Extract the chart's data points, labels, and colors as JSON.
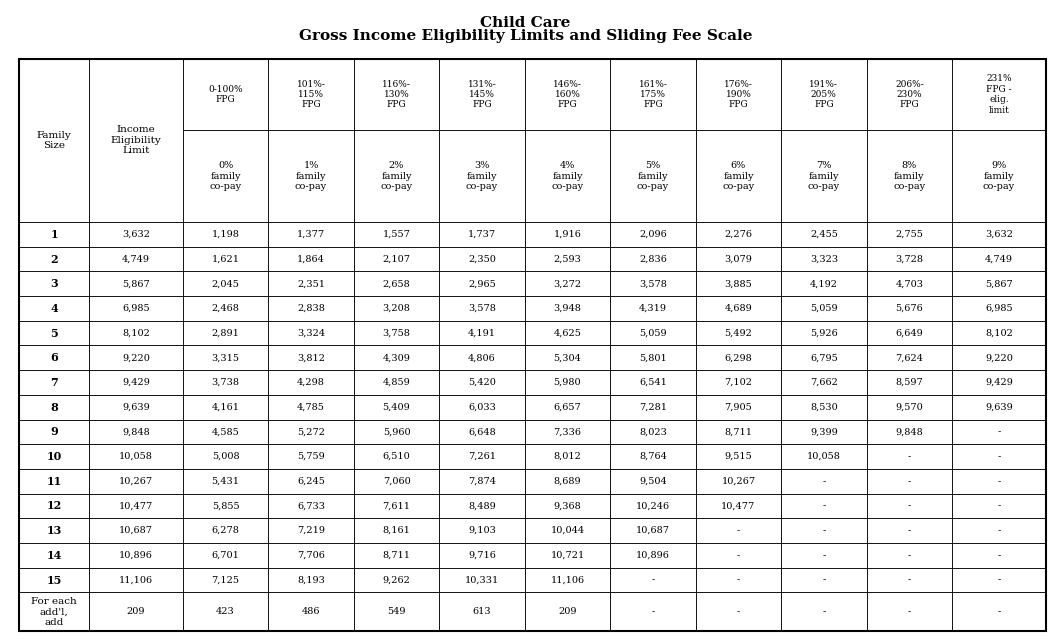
{
  "title_line1": "Child Care",
  "title_line2": "Gross Income Eligibility Limits and Sliding Fee Scale",
  "col_headers_top": [
    "0-100%\nFPG",
    "101%-\n115%\nFPG",
    "116%-\n130%\nFPG",
    "131%-\n145%\nFPG",
    "146%-\n160%\nFPG",
    "161%-\n175%\nFPG",
    "176%-\n190%\nFPG",
    "191%-\n205%\nFPG",
    "206%-\n230%\nFPG",
    "231%\nFPG -\nelig.\nlimit"
  ],
  "col_headers_bottom": [
    "Family\nSize",
    "Income\nEligibility\nLimit",
    "0%\nfamily\nco-pay",
    "1%\nfamily\nco-pay",
    "2%\nfamily\nco-pay",
    "3%\nfamily\nco-pay",
    "4%\nfamily\nco-pay",
    "5%\nfamily\nco-pay",
    "6%\nfamily\nco-pay",
    "7%\nfamily\nco-pay",
    "8%\nfamily\nco-pay",
    "9%\nfamily\nco-pay"
  ],
  "row_labels": [
    "1",
    "2",
    "3",
    "4",
    "5",
    "6",
    "7",
    "8",
    "9",
    "10",
    "11",
    "12",
    "13",
    "14",
    "15",
    "For each\nadd'l,\nadd"
  ],
  "data": [
    [
      "3,632",
      "1,198",
      "1,377",
      "1,557",
      "1,737",
      "1,916",
      "2,096",
      "2,276",
      "2,455",
      "2,755",
      "3,632"
    ],
    [
      "4,749",
      "1,621",
      "1,864",
      "2,107",
      "2,350",
      "2,593",
      "2,836",
      "3,079",
      "3,323",
      "3,728",
      "4,749"
    ],
    [
      "5,867",
      "2,045",
      "2,351",
      "2,658",
      "2,965",
      "3,272",
      "3,578",
      "3,885",
      "4,192",
      "4,703",
      "5,867"
    ],
    [
      "6,985",
      "2,468",
      "2,838",
      "3,208",
      "3,578",
      "3,948",
      "4,319",
      "4,689",
      "5,059",
      "5,676",
      "6,985"
    ],
    [
      "8,102",
      "2,891",
      "3,324",
      "3,758",
      "4,191",
      "4,625",
      "5,059",
      "5,492",
      "5,926",
      "6,649",
      "8,102"
    ],
    [
      "9,220",
      "3,315",
      "3,812",
      "4,309",
      "4,806",
      "5,304",
      "5,801",
      "6,298",
      "6,795",
      "7,624",
      "9,220"
    ],
    [
      "9,429",
      "3,738",
      "4,298",
      "4,859",
      "5,420",
      "5,980",
      "6,541",
      "7,102",
      "7,662",
      "8,597",
      "9,429"
    ],
    [
      "9,639",
      "4,161",
      "4,785",
      "5,409",
      "6,033",
      "6,657",
      "7,281",
      "7,905",
      "8,530",
      "9,570",
      "9,639"
    ],
    [
      "9,848",
      "4,585",
      "5,272",
      "5,960",
      "6,648",
      "7,336",
      "8,023",
      "8,711",
      "9,399",
      "9,848",
      "-"
    ],
    [
      "10,058",
      "5,008",
      "5,759",
      "6,510",
      "7,261",
      "8,012",
      "8,764",
      "9,515",
      "10,058",
      "-",
      "-"
    ],
    [
      "10,267",
      "5,431",
      "6,245",
      "7,060",
      "7,874",
      "8,689",
      "9,504",
      "10,267",
      "-",
      "-",
      "-"
    ],
    [
      "10,477",
      "5,855",
      "6,733",
      "7,611",
      "8,489",
      "9,368",
      "10,246",
      "10,477",
      "-",
      "-",
      "-"
    ],
    [
      "10,687",
      "6,278",
      "7,219",
      "8,161",
      "9,103",
      "10,044",
      "10,687",
      "-",
      "-",
      "-",
      "-"
    ],
    [
      "10,896",
      "6,701",
      "7,706",
      "8,711",
      "9,716",
      "10,721",
      "10,896",
      "-",
      "-",
      "-",
      "-"
    ],
    [
      "11,106",
      "7,125",
      "8,193",
      "9,262",
      "10,331",
      "11,106",
      "-",
      "-",
      "-",
      "-",
      "-"
    ],
    [
      "209",
      "423",
      "486",
      "549",
      "613",
      "209",
      "-",
      "-",
      "-",
      "-",
      "-"
    ]
  ],
  "bold_data_rows": [
    0,
    1,
    2,
    3,
    4,
    5,
    6,
    7,
    8,
    9,
    10,
    11,
    12,
    13,
    14
  ],
  "background_color": "#ffffff",
  "border_color": "#000000",
  "text_color": "#000000",
  "figsize": [
    10.51,
    6.39
  ],
  "dpi": 100
}
